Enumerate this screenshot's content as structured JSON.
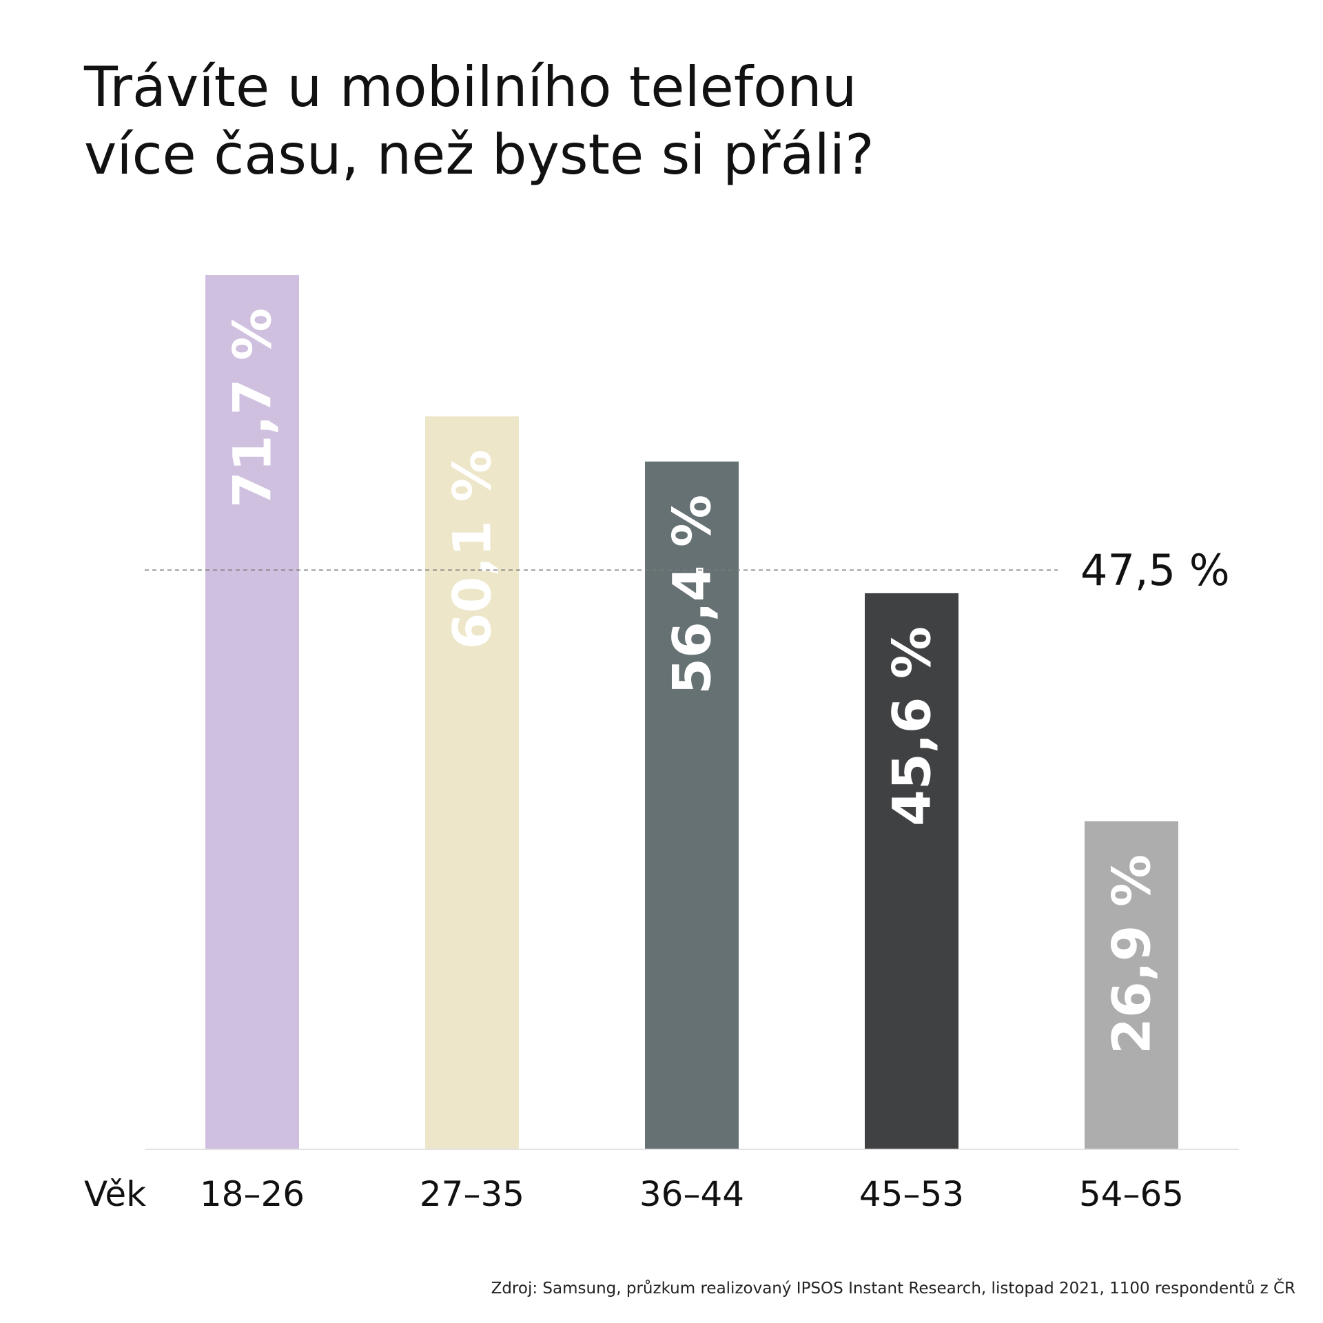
{
  "title_lines": [
    "Trávíte u mobilního telefonu",
    "více času, než byste si přáli?"
  ],
  "source": "Zdroj: Samsung, průzkum realizovaný IPSOS Instant Research, listopad 2021, 1100 respondentů z ČR",
  "chart_data": {
    "type": "bar",
    "xlabel": "Věk",
    "categories": [
      "18–26",
      "27–35",
      "36–44",
      "45–53",
      "54–65"
    ],
    "values": [
      71.7,
      60.1,
      56.4,
      45.6,
      26.9
    ],
    "value_labels": [
      "71,7 %",
      "60,1 %",
      "56,4 %",
      "45,6 %",
      "26,9 %"
    ],
    "colors": [
      "#cfc0df",
      "#ede6c8",
      "#667174",
      "#404143",
      "#adadad"
    ],
    "reference_line": {
      "value": 47.5,
      "label": "47,5 %",
      "style": "dashed"
    },
    "ylim": [
      0,
      71.7
    ],
    "grid": false,
    "legend": "none"
  }
}
